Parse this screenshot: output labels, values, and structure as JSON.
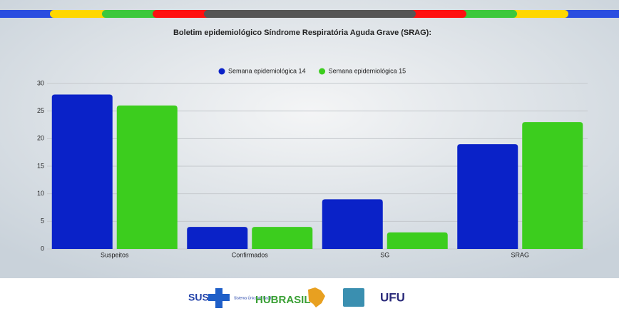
{
  "chart_data": {
    "type": "bar",
    "title": "Boletim epidemiológico Síndrome Respiratória Aguda Grave (SRAG):",
    "categories": [
      "Suspeitos",
      "Confirmados",
      "SG",
      "SRAG"
    ],
    "series": [
      {
        "name": "Semana epidemiológica 14",
        "color": "#0a22c8",
        "values": [
          28,
          4,
          9,
          19
        ]
      },
      {
        "name": "Semana epidemiológica 15",
        "color": "#3ccd1e",
        "values": [
          26,
          4,
          3,
          23
        ]
      }
    ],
    "ylim": [
      0,
      30
    ],
    "yticks": [
      0,
      5,
      10,
      15,
      20,
      25,
      30
    ],
    "grid": true,
    "legend": "top"
  },
  "footer": {
    "sus": "SUS",
    "sus_caption": "Sistema Único de Saúde",
    "hubrasil": "HUBRASIL",
    "ufu": "UFU"
  }
}
